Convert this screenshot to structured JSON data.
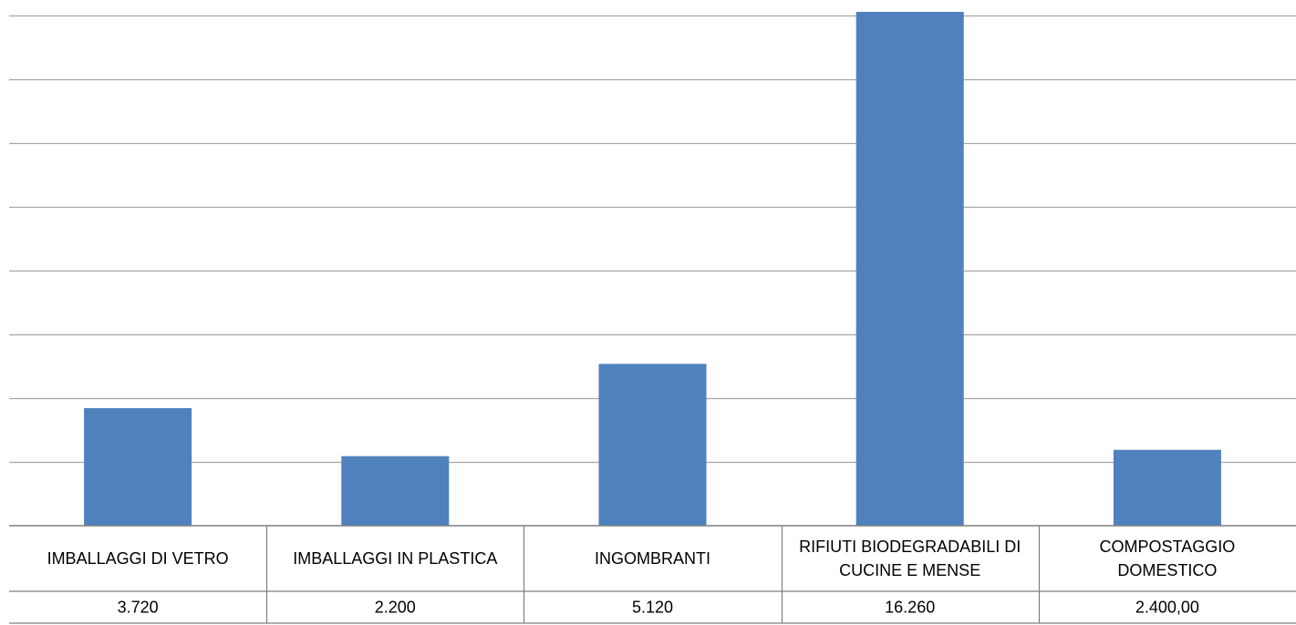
{
  "colors": {
    "bar": "#4f81bd",
    "gridline": "#a6a6a6",
    "table_border": "#7f7f7f"
  },
  "chart_data": {
    "type": "bar",
    "categories": [
      "IMBALLAGGI DI VETRO",
      "IMBALLAGGI IN PLASTICA",
      "INGOMBRANTI",
      "RIFIUTI BIODEGRADABILI DI CUCINE E MENSE",
      "COMPOSTAGGIO DOMESTICO"
    ],
    "category_lines": [
      [
        "IMBALLAGGI DI VETRO"
      ],
      [
        "IMBALLAGGI IN PLASTICA"
      ],
      [
        "INGOMBRANTI"
      ],
      [
        "RIFIUTI BIODEGRADABILI DI",
        "CUCINE E MENSE"
      ],
      [
        "COMPOSTAGGIO",
        "DOMESTICO"
      ]
    ],
    "values": [
      3720,
      2200,
      5120,
      16260,
      2400
    ],
    "value_labels": [
      "3.720",
      "2.200",
      "5.120",
      "16.260",
      "2.400,00"
    ],
    "ylim": [
      0,
      16000
    ],
    "grid": true,
    "data_table": true
  }
}
